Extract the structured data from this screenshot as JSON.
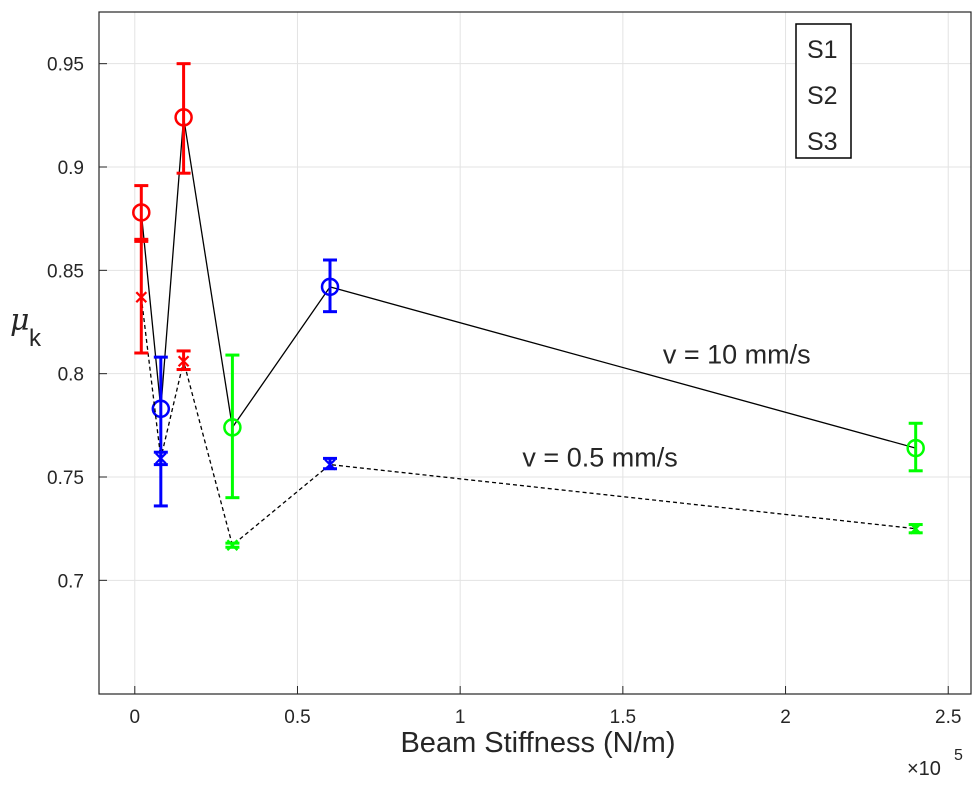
{
  "chart_data": {
    "type": "scatter",
    "title": "",
    "xlabel": "Beam Stiffness (N/m)",
    "ylabel": "μ",
    "ylabel_subscript": "k",
    "x_multiplier_label": "×10",
    "x_multiplier_exponent": "5",
    "xlim": [
      -0.11,
      2.57
    ],
    "ylim": [
      0.645,
      0.975
    ],
    "x_ticks": [
      0,
      0.5,
      1,
      1.5,
      2,
      2.5
    ],
    "x_tick_labels": [
      "0",
      "0.5",
      "1",
      "1.5",
      "2",
      "2.5"
    ],
    "y_ticks": [
      0.7,
      0.75,
      0.8,
      0.85,
      0.9,
      0.95
    ],
    "y_tick_labels": [
      "0.7",
      "0.75",
      "0.8",
      "0.85",
      "0.9",
      "0.95"
    ],
    "grid": true,
    "legend": {
      "placement": "top-right",
      "entries": [
        {
          "label": "S1",
          "color": "#00ff00"
        },
        {
          "label": "S2",
          "color": "#0000ff"
        },
        {
          "label": "S3",
          "color": "#ff0000"
        }
      ]
    },
    "annotations": [
      {
        "text": "v = 10 mm/s",
        "x": 1.85,
        "y": 0.805
      },
      {
        "text": "v = 0.5 mm/s",
        "x": 1.43,
        "y": 0.755
      }
    ],
    "series": [
      {
        "velocity": "10 mm/s",
        "line_color": "#000000",
        "line_style": "solid",
        "marker": "circle",
        "points": [
          {
            "x": 0.02,
            "y": 0.878,
            "err_low": 0.865,
            "err_high": 0.891,
            "sample": "S3"
          },
          {
            "x": 0.08,
            "y": 0.783,
            "err_low": 0.736,
            "err_high": 0.808,
            "sample": "S2"
          },
          {
            "x": 0.15,
            "y": 0.924,
            "err_low": 0.897,
            "err_high": 0.95,
            "sample": "S3"
          },
          {
            "x": 0.3,
            "y": 0.774,
            "err_low": 0.74,
            "err_high": 0.809,
            "sample": "S1"
          },
          {
            "x": 0.6,
            "y": 0.842,
            "err_low": 0.83,
            "err_high": 0.855,
            "sample": "S2"
          },
          {
            "x": 2.4,
            "y": 0.764,
            "err_low": 0.753,
            "err_high": 0.776,
            "sample": "S1"
          }
        ]
      },
      {
        "velocity": "0.5 mm/s",
        "line_color": "#000000",
        "line_style": "dashed",
        "marker": "x",
        "points": [
          {
            "x": 0.02,
            "y": 0.837,
            "err_low": 0.81,
            "err_high": 0.864,
            "sample": "S3"
          },
          {
            "x": 0.08,
            "y": 0.759,
            "err_low": 0.756,
            "err_high": 0.762,
            "sample": "S2"
          },
          {
            "x": 0.15,
            "y": 0.806,
            "err_low": 0.802,
            "err_high": 0.811,
            "sample": "S3"
          },
          {
            "x": 0.3,
            "y": 0.717,
            "err_low": 0.716,
            "err_high": 0.718,
            "sample": "S1"
          },
          {
            "x": 0.6,
            "y": 0.756,
            "err_low": 0.754,
            "err_high": 0.759,
            "sample": "S2"
          },
          {
            "x": 2.4,
            "y": 0.725,
            "err_low": 0.723,
            "err_high": 0.727,
            "sample": "S1"
          }
        ]
      }
    ]
  }
}
